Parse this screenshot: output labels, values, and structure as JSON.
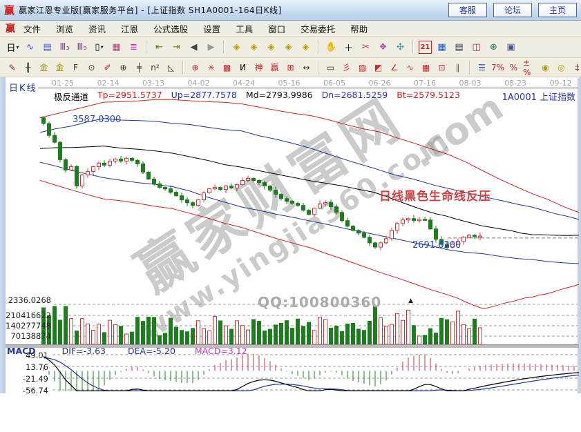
{
  "window": {
    "logo": "赢",
    "title": "赢家江恩专业版[赢家服务平台] - [上证指数  SH1A0001-164日K线]",
    "buttons": [
      {
        "id": "customer-service",
        "label": "客服"
      },
      {
        "id": "forum",
        "label": "论坛"
      },
      {
        "id": "home",
        "label": "主页"
      }
    ]
  },
  "menubar": {
    "logo": "赢",
    "items": [
      "文件",
      "浏览",
      "资讯",
      "江恩",
      "公式选股",
      "设置",
      "工具",
      "窗口",
      "交易委托",
      "帮助"
    ]
  },
  "toolbar_main": {
    "icons": [
      {
        "name": "period-day",
        "glyph": "日",
        "color": "#000000",
        "drop": true
      },
      {
        "name": "wave-chart",
        "glyph": "∿",
        "color": "#3a3acc"
      },
      {
        "name": "order-note",
        "glyph": "▤",
        "color": "#3a5acc"
      },
      {
        "name": "wave-3",
        "glyph": "Ⅲ₃",
        "color": "#884499"
      },
      {
        "name": "wave-9",
        "glyph": "Ⅲ₉",
        "color": "#884499"
      },
      {
        "name": "candle-style",
        "glyph": "▯",
        "color": "#000000",
        "drop": true
      },
      {
        "name": "red-chart",
        "glyph": "▦",
        "color": "#cc3377"
      },
      {
        "name": "color-histogram",
        "glyph": "≣",
        "color": "#cc33cc"
      },
      {
        "sep": true
      },
      {
        "name": "go-first",
        "glyph": "⇤",
        "color": "#7a7a00"
      },
      {
        "name": "go-last",
        "glyph": "⇥",
        "color": "#7a7a00"
      },
      {
        "name": "go-prev",
        "glyph": "◀",
        "color": "#444444"
      },
      {
        "name": "go-next",
        "glyph": "▶",
        "color": "#999999"
      },
      {
        "sep": true
      },
      {
        "name": "gann-nav-1",
        "glyph": "◈",
        "color": "#b89c00"
      },
      {
        "name": "gann-nav-2",
        "glyph": "◈",
        "color": "#b89c00"
      },
      {
        "name": "gann-nav-3",
        "glyph": "◈",
        "color": "#b89c00"
      },
      {
        "name": "gann-nav-4",
        "glyph": "◈",
        "color": "#b89c00"
      },
      {
        "name": "gann-nav-5",
        "glyph": "◈",
        "color": "#b89c00"
      },
      {
        "sep": true
      },
      {
        "name": "hand-tool",
        "glyph": "✋",
        "color": "#6b4a26"
      },
      {
        "name": "crosshair-tool",
        "glyph": "＋",
        "color": "#000000"
      },
      {
        "name": "cut-tool",
        "glyph": "✂",
        "color": "#aa3344"
      },
      {
        "name": "ribbon-tool",
        "glyph": "❖",
        "color": "#aa44aa"
      },
      {
        "name": "smart-analysis",
        "glyph": "✣",
        "color": "#22a0a0"
      },
      {
        "sep": true
      },
      {
        "name": "calendar",
        "glyph": "21",
        "color": "#cc2222",
        "cal": true
      },
      {
        "name": "calculator",
        "glyph": "▦",
        "color": "#2255cc"
      },
      {
        "name": "report-doc",
        "glyph": "▤",
        "color": "#333355"
      },
      {
        "name": "save-floppy",
        "glyph": "◫",
        "color": "#bb2244"
      },
      {
        "name": "network-pc",
        "glyph": "⊕",
        "color": "#227755"
      },
      {
        "name": "remote-pc",
        "glyph": "▣",
        "color": "#445599"
      }
    ]
  },
  "toolbar_draw": {
    "icons": [
      {
        "name": "brush-tool",
        "glyph": "✎",
        "color": "#bb2222"
      },
      {
        "name": "ruler-ticks",
        "glyph": "╫",
        "color": "#333333"
      },
      {
        "name": "gold-gann-a",
        "glyph": "金",
        "color": "#a08800"
      },
      {
        "name": "gold-gann-b",
        "glyph": "金",
        "color": "#a08800"
      },
      {
        "name": "tool-f",
        "glyph": "F",
        "color": "#333333"
      },
      {
        "name": "spiral-tool",
        "glyph": "⊙",
        "color": "#333333"
      },
      {
        "name": "pen-2",
        "glyph": "✐",
        "color": "#bb2222"
      },
      {
        "name": "cycle-compass",
        "glyph": "⊕",
        "color": "#333333"
      },
      {
        "name": "ruler-2",
        "glyph": "╪",
        "color": "#333333"
      },
      {
        "name": "n-square",
        "glyph": "n²",
        "color": "#333333"
      },
      {
        "name": "set-square",
        "glyph": "◺",
        "color": "#333333"
      },
      {
        "sep": true
      },
      {
        "name": "target-circle",
        "glyph": "⊕",
        "color": "#cc2222"
      },
      {
        "name": "burst-box",
        "glyph": "✳",
        "color": "#cc2222"
      },
      {
        "name": "grid-box",
        "glyph": "▩",
        "color": "#cc2222"
      },
      {
        "name": "k-mark",
        "glyph": "И",
        "color": "#000000"
      },
      {
        "name": "shen-tool",
        "glyph": "神",
        "color": "#cc2222"
      },
      {
        "name": "ying-tool",
        "glyph": "赢",
        "color": "#cc2222"
      },
      {
        "name": "grid-numbers",
        "glyph": "⊞",
        "color": "#cc2222"
      },
      {
        "name": "width-arrows",
        "glyph": "↔",
        "color": "#333333"
      },
      {
        "sep": true
      },
      {
        "name": "frame-tool",
        "glyph": "▭",
        "color": "#333333"
      },
      {
        "name": "gann-fan",
        "glyph": "彡",
        "color": "#cc2222"
      },
      {
        "name": "fan-box",
        "glyph": "▨",
        "color": "#cc2222"
      },
      {
        "name": "fan-box-2",
        "glyph": "◩",
        "color": "#cc2222"
      },
      {
        "name": "angle-tool",
        "glyph": "∠",
        "color": "#cc2222"
      },
      {
        "name": "zigzag-tool",
        "glyph": "∿",
        "color": "#cc2222"
      },
      {
        "name": "gann-grid",
        "glyph": "▦",
        "color": "#cc2222"
      },
      {
        "name": "gann-grid-2",
        "glyph": "⊡",
        "color": "#cc2222"
      },
      {
        "name": "parallel-lines",
        "glyph": "∥",
        "color": "#cc2222"
      },
      {
        "sep": true
      },
      {
        "name": "levels-list",
        "glyph": "☰",
        "color": "#2244cc"
      },
      {
        "name": "percent-band",
        "glyph": "7%",
        "color": "#cc2222"
      },
      {
        "name": "percent-tool",
        "glyph": "%",
        "color": "#cc2222"
      },
      {
        "name": "percent-offset",
        "glyph": "±%",
        "color": "#cc2222"
      },
      {
        "name": "gold-circle",
        "glyph": "◉",
        "color": "#b89c00"
      },
      {
        "name": "gold-circle-2",
        "glyph": "◎",
        "color": "#b89c00"
      },
      {
        "name": "measure-tool",
        "glyph": "‡",
        "color": "#cc2222"
      }
    ]
  },
  "chart": {
    "panel_label": "日K线",
    "dates": [
      "01-25",
      "02-14",
      "03-13",
      "04-02",
      "04-24",
      "05-16",
      "06-05",
      "06-26",
      "07-16",
      "08-03",
      "08-23",
      "09-12"
    ],
    "indicator_header": {
      "name": "极反通道",
      "params": [
        {
          "label": "Tp=2951.5737",
          "color": "#cc2222"
        },
        {
          "label": "Up=2877.7578",
          "color": "#2233bb"
        },
        {
          "label": "Md=2793.9986",
          "color": "#111111"
        },
        {
          "label": "Dn=2681.5259",
          "color": "#2233bb"
        },
        {
          "label": "Bt=2579.5123",
          "color": "#cc2222"
        }
      ]
    },
    "symbol_label": "1A0001  上证指数",
    "annotations": {
      "peak_price": "3587.0300",
      "pressure_note": "日线黑色生命线反压",
      "low_price": "2691.0200",
      "qq": "QQ:100800360"
    },
    "watermark": {
      "site_name": "赢家财富网",
      "suffix": ".com",
      "url": "www.yingjia360.com"
    },
    "volume_axis": [
      "2336.0268",
      "210416622",
      "140277748",
      "70138874"
    ],
    "macd_header": {
      "label": "MACD",
      "dif": "DIF=-3.63",
      "dea": "DEA=-5.20",
      "macd": "MACD=3.12"
    },
    "macd_axis": [
      "49.01",
      "13.76",
      "-21.49",
      "-56.74"
    ]
  },
  "chart_data": {
    "type": "candlestick",
    "title": "上证指数 SH1A0001 164日K线",
    "ylim": [
      2110,
      3825
    ],
    "marked_high": 3587.03,
    "marked_low": 2691.02,
    "open_first": 3610,
    "closes": [
      3566,
      3476,
      3423,
      3290,
      3211,
      3237,
      3089,
      3173,
      3200,
      3237,
      3264,
      3248,
      3279,
      3295,
      3279,
      3301,
      3285,
      3258,
      3195,
      3142,
      3105,
      3078,
      3067,
      3041,
      3014,
      2983,
      2961,
      2940,
      2983,
      3036,
      3067,
      3078,
      3062,
      3089,
      3073,
      3099,
      3131,
      3147,
      3131,
      3115,
      3089,
      3057,
      3025,
      2993,
      2972,
      2956,
      2940,
      2903,
      2871,
      2919,
      2951,
      2961,
      2930,
      2887,
      2824,
      2781,
      2749,
      2728,
      2696,
      2654,
      2622,
      2654,
      2686,
      2749,
      2802,
      2829,
      2839,
      2824,
      2834,
      2829,
      2760,
      2681,
      2643,
      2622,
      2643,
      2664,
      2696,
      2712,
      2701,
      2706
    ],
    "channel": {
      "name": "极反通道",
      "values": {
        "Tp": 2951.5737,
        "Up": 2877.7578,
        "Md": 2793.9986,
        "Dn": 2681.5259,
        "Bt": 2579.5123
      },
      "lines": [
        {
          "id": "Tp",
          "color": "#cc2222",
          "anchors": [
            [
              0,
              3614
            ],
            [
              0.118,
              3730
            ],
            [
              0.246,
              3751
            ],
            [
              0.374,
              3719
            ],
            [
              0.503,
              3624
            ],
            [
              0.631,
              3498
            ],
            [
              0.759,
              3329
            ],
            [
              0.887,
              3076
            ],
            [
              1,
              2886
            ]
          ]
        },
        {
          "id": "Up",
          "color": "#223399",
          "anchors": [
            [
              0,
              3498
            ],
            [
              0.118,
              3603
            ],
            [
              0.246,
              3572
            ],
            [
              0.374,
              3508
            ],
            [
              0.503,
              3376
            ],
            [
              0.656,
              3176
            ],
            [
              0.81,
              3018
            ],
            [
              0.913,
              2928
            ],
            [
              1,
              2833
            ]
          ]
        },
        {
          "id": "Md",
          "color": "#000000",
          "anchors": [
            [
              0,
              3376
            ],
            [
              0.118,
              3392
            ],
            [
              0.246,
              3339
            ],
            [
              0.374,
              3229
            ],
            [
              0.503,
              3128
            ],
            [
              0.618,
              3044
            ],
            [
              0.695,
              2928
            ],
            [
              0.772,
              2833
            ],
            [
              0.836,
              2770
            ],
            [
              0.913,
              2717
            ],
            [
              1,
              2712
            ]
          ]
        },
        {
          "id": "Dn",
          "color": "#223399",
          "anchors": [
            [
              0,
              3271
            ],
            [
              0.118,
              3150
            ],
            [
              0.246,
              3086
            ],
            [
              0.374,
              2928
            ],
            [
              0.503,
              2822
            ],
            [
              0.631,
              2706
            ],
            [
              0.759,
              2601
            ],
            [
              0.887,
              2532
            ],
            [
              1,
              2495
            ]
          ]
        },
        {
          "id": "Bt",
          "color": "#cc2222",
          "anchors": [
            [
              0,
              3128
            ],
            [
              0.118,
              2991
            ],
            [
              0.246,
              2917
            ],
            [
              0.374,
              2770
            ],
            [
              0.503,
              2611
            ],
            [
              0.631,
              2427
            ],
            [
              0.759,
              2253
            ],
            [
              0.823,
              2152
            ],
            [
              0.9,
              2231
            ],
            [
              0.951,
              2274
            ],
            [
              1,
              2337
            ]
          ]
        }
      ]
    },
    "macd": {
      "dif": -3.63,
      "dea": -5.2,
      "macd": 3.12,
      "axis_values": [
        49.01,
        13.76,
        -21.49,
        -56.74
      ]
    }
  }
}
